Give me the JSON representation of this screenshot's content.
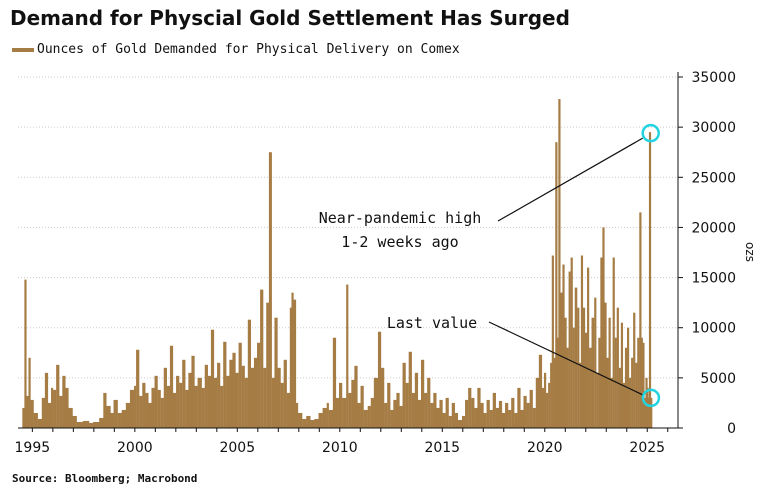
{
  "title": "Demand for Physcial Gold Settlement Has Surged",
  "source": "Source: Bloomberg; Macrobond",
  "colors": {
    "series": "#a67c45",
    "grid": "#c9c9c9",
    "highlight": "#22d3e0"
  },
  "chart_data": {
    "type": "bar",
    "title": "Demand for Physcial Gold Settlement Has Surged",
    "legend": "top-left",
    "grid": true,
    "ylabel": "ozs",
    "ylim": [
      0,
      35000
    ],
    "xlim": [
      1994.3,
      2026.5
    ],
    "yticks": [
      "0",
      "5000",
      "10000",
      "15000",
      "20000",
      "25000",
      "30000",
      "35000"
    ],
    "xticks": [
      "1995",
      "2000",
      "2005",
      "2010",
      "2015",
      "2020",
      "2025"
    ],
    "series": [
      {
        "name": "Ounces of Gold Demanded for Physical Delivery on Comex",
        "points": [
          [
            1994.55,
            2000
          ],
          [
            1994.65,
            14800
          ],
          [
            1994.72,
            3200
          ],
          [
            1994.85,
            7000
          ],
          [
            1994.95,
            2800
          ],
          [
            1995.1,
            1500
          ],
          [
            1995.3,
            900
          ],
          [
            1995.5,
            3000
          ],
          [
            1995.65,
            5500
          ],
          [
            1995.8,
            2500
          ],
          [
            1995.95,
            4000
          ],
          [
            1996.05,
            3800
          ],
          [
            1996.2,
            6300
          ],
          [
            1996.35,
            3200
          ],
          [
            1996.5,
            5200
          ],
          [
            1996.65,
            4000
          ],
          [
            1996.8,
            2000
          ],
          [
            1997.0,
            1200
          ],
          [
            1997.2,
            600
          ],
          [
            1997.5,
            700
          ],
          [
            1997.8,
            500
          ],
          [
            1998.0,
            600
          ],
          [
            1998.3,
            1000
          ],
          [
            1998.5,
            3500
          ],
          [
            1998.65,
            2200
          ],
          [
            1998.85,
            1500
          ],
          [
            1999.0,
            2800
          ],
          [
            1999.2,
            1500
          ],
          [
            1999.4,
            1800
          ],
          [
            1999.6,
            2500
          ],
          [
            1999.8,
            3800
          ],
          [
            2000.0,
            4200
          ],
          [
            2000.1,
            7800
          ],
          [
            2000.25,
            3200
          ],
          [
            2000.4,
            4500
          ],
          [
            2000.55,
            3500
          ],
          [
            2000.7,
            2500
          ],
          [
            2000.85,
            4000
          ],
          [
            2001.0,
            5200
          ],
          [
            2001.15,
            3800
          ],
          [
            2001.3,
            3000
          ],
          [
            2001.45,
            6000
          ],
          [
            2001.6,
            4200
          ],
          [
            2001.75,
            8200
          ],
          [
            2001.9,
            3500
          ],
          [
            2002.05,
            5200
          ],
          [
            2002.2,
            4500
          ],
          [
            2002.35,
            6800
          ],
          [
            2002.5,
            3800
          ],
          [
            2002.65,
            5500
          ],
          [
            2002.8,
            7200
          ],
          [
            2002.95,
            4200
          ],
          [
            2003.1,
            5000
          ],
          [
            2003.3,
            4000
          ],
          [
            2003.45,
            6300
          ],
          [
            2003.6,
            5200
          ],
          [
            2003.75,
            9800
          ],
          [
            2003.9,
            5000
          ],
          [
            2004.05,
            6500
          ],
          [
            2004.2,
            4200
          ],
          [
            2004.35,
            8600
          ],
          [
            2004.5,
            5200
          ],
          [
            2004.65,
            6800
          ],
          [
            2004.8,
            7500
          ],
          [
            2004.95,
            5500
          ],
          [
            2005.1,
            8500
          ],
          [
            2005.25,
            6200
          ],
          [
            2005.4,
            5000
          ],
          [
            2005.55,
            10800
          ],
          [
            2005.7,
            6000
          ],
          [
            2005.85,
            7000
          ],
          [
            2006.0,
            8500
          ],
          [
            2006.15,
            13800
          ],
          [
            2006.3,
            6000
          ],
          [
            2006.45,
            12500
          ],
          [
            2006.58,
            27500
          ],
          [
            2006.72,
            5000
          ],
          [
            2006.85,
            11000
          ],
          [
            2007.0,
            6000
          ],
          [
            2007.15,
            4500
          ],
          [
            2007.3,
            6800
          ],
          [
            2007.45,
            3500
          ],
          [
            2007.6,
            12000
          ],
          [
            2007.68,
            13500
          ],
          [
            2007.75,
            12800
          ],
          [
            2007.9,
            2500
          ],
          [
            2008.0,
            1500
          ],
          [
            2008.2,
            900
          ],
          [
            2008.4,
            1200
          ],
          [
            2008.6,
            800
          ],
          [
            2008.8,
            900
          ],
          [
            2009.0,
            1500
          ],
          [
            2009.2,
            2000
          ],
          [
            2009.4,
            2500
          ],
          [
            2009.5,
            1800
          ],
          [
            2009.7,
            9000
          ],
          [
            2009.85,
            3000
          ],
          [
            2010.0,
            4500
          ],
          [
            2010.15,
            3000
          ],
          [
            2010.35,
            14300
          ],
          [
            2010.45,
            3500
          ],
          [
            2010.6,
            4800
          ],
          [
            2010.75,
            6200
          ],
          [
            2010.9,
            2500
          ],
          [
            2011.05,
            4200
          ],
          [
            2011.2,
            1800
          ],
          [
            2011.4,
            2200
          ],
          [
            2011.55,
            3000
          ],
          [
            2011.7,
            5000
          ],
          [
            2011.9,
            9600
          ],
          [
            2012.05,
            6000
          ],
          [
            2012.2,
            2500
          ],
          [
            2012.35,
            4500
          ],
          [
            2012.5,
            1800
          ],
          [
            2012.65,
            2800
          ],
          [
            2012.8,
            3500
          ],
          [
            2012.95,
            2200
          ],
          [
            2013.1,
            6500
          ],
          [
            2013.25,
            4500
          ],
          [
            2013.4,
            7600
          ],
          [
            2013.55,
            3500
          ],
          [
            2013.7,
            5500
          ],
          [
            2013.85,
            2800
          ],
          [
            2014.0,
            6800
          ],
          [
            2014.15,
            3500
          ],
          [
            2014.3,
            5000
          ],
          [
            2014.45,
            2500
          ],
          [
            2014.6,
            3500
          ],
          [
            2014.75,
            2000
          ],
          [
            2014.9,
            2800
          ],
          [
            2015.05,
            1500
          ],
          [
            2015.2,
            3000
          ],
          [
            2015.35,
            1200
          ],
          [
            2015.5,
            2500
          ],
          [
            2015.65,
            1500
          ],
          [
            2015.8,
            800
          ],
          [
            2016.0,
            1200
          ],
          [
            2016.15,
            2800
          ],
          [
            2016.3,
            4000
          ],
          [
            2016.45,
            3000
          ],
          [
            2016.6,
            2000
          ],
          [
            2016.75,
            4000
          ],
          [
            2016.9,
            2500
          ],
          [
            2017.05,
            1500
          ],
          [
            2017.2,
            2800
          ],
          [
            2017.35,
            1800
          ],
          [
            2017.5,
            3500
          ],
          [
            2017.65,
            2000
          ],
          [
            2017.8,
            2700
          ],
          [
            2017.95,
            1500
          ],
          [
            2018.1,
            2500
          ],
          [
            2018.25,
            1800
          ],
          [
            2018.4,
            3000
          ],
          [
            2018.55,
            1500
          ],
          [
            2018.7,
            4000
          ],
          [
            2018.85,
            1800
          ],
          [
            2019.0,
            3200
          ],
          [
            2019.15,
            2500
          ],
          [
            2019.3,
            3800
          ],
          [
            2019.45,
            2000
          ],
          [
            2019.6,
            5000
          ],
          [
            2019.75,
            7300
          ],
          [
            2019.9,
            4000
          ],
          [
            2020.0,
            5500
          ],
          [
            2020.1,
            3500
          ],
          [
            2020.2,
            4500
          ],
          [
            2020.3,
            6500
          ],
          [
            2020.38,
            17200
          ],
          [
            2020.48,
            7000
          ],
          [
            2020.55,
            28500
          ],
          [
            2020.62,
            9000
          ],
          [
            2020.7,
            32800
          ],
          [
            2020.8,
            13500
          ],
          [
            2020.9,
            16300
          ],
          [
            2021.0,
            11000
          ],
          [
            2021.1,
            8000
          ],
          [
            2021.2,
            15600
          ],
          [
            2021.3,
            17000
          ],
          [
            2021.4,
            10000
          ],
          [
            2021.5,
            14000
          ],
          [
            2021.62,
            12000
          ],
          [
            2021.72,
            6500
          ],
          [
            2021.8,
            17200
          ],
          [
            2021.9,
            12000
          ],
          [
            2022.0,
            9500
          ],
          [
            2022.1,
            16000
          ],
          [
            2022.2,
            8000
          ],
          [
            2022.32,
            11000
          ],
          [
            2022.45,
            13000
          ],
          [
            2022.55,
            5500
          ],
          [
            2022.65,
            9000
          ],
          [
            2022.75,
            17000
          ],
          [
            2022.85,
            20000
          ],
          [
            2022.95,
            12500
          ],
          [
            2023.05,
            7000
          ],
          [
            2023.15,
            11000
          ],
          [
            2023.25,
            5000
          ],
          [
            2023.35,
            17000
          ],
          [
            2023.45,
            9000
          ],
          [
            2023.55,
            12000
          ],
          [
            2023.65,
            6000
          ],
          [
            2023.75,
            10500
          ],
          [
            2023.85,
            4500
          ],
          [
            2023.95,
            8000
          ],
          [
            2024.05,
            10000
          ],
          [
            2024.15,
            5000
          ],
          [
            2024.25,
            7000
          ],
          [
            2024.35,
            11500
          ],
          [
            2024.45,
            6500
          ],
          [
            2024.55,
            9000
          ],
          [
            2024.65,
            21500
          ],
          [
            2024.72,
            9000
          ],
          [
            2024.8,
            8500
          ],
          [
            2024.88,
            3000
          ],
          [
            2024.95,
            5000
          ],
          [
            2025.0,
            4000
          ],
          [
            2025.05,
            3000
          ],
          [
            2025.12,
            29500
          ],
          [
            2025.18,
            3000
          ]
        ]
      }
    ],
    "annotations": [
      {
        "text_lines": [
          "Near-pandemic high",
          "1-2 weeks ago"
        ],
        "points_to": [
          2025.12,
          29500
        ]
      },
      {
        "text_lines": [
          "Last value"
        ],
        "points_to": [
          2025.18,
          3000
        ]
      }
    ]
  }
}
